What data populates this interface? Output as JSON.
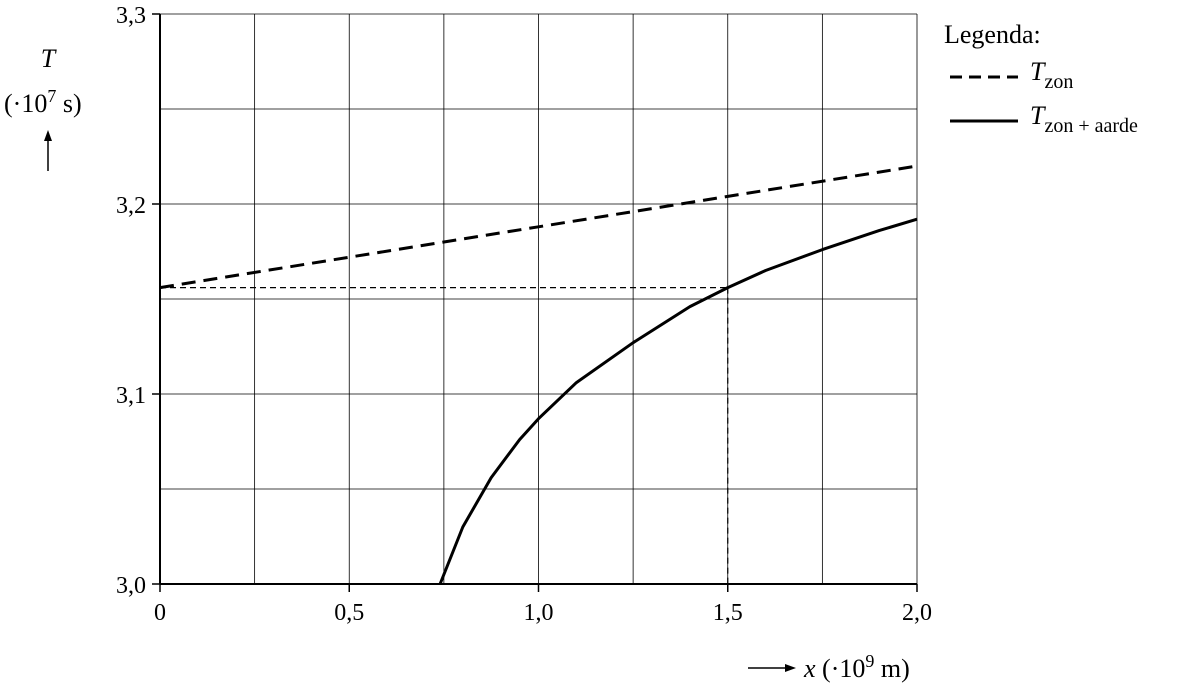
{
  "chart_data": {
    "type": "line",
    "x_axis": {
      "label_symbol": "x",
      "label_unit": "(·10",
      "label_exp": "9",
      "label_unit_end": "m)",
      "range": [
        0,
        2.0
      ],
      "ticks": [
        0,
        0.5,
        1.0,
        1.5,
        2.0
      ],
      "tick_labels": [
        "0",
        "0,5",
        "1,0",
        "1,5",
        "2,0"
      ],
      "grid_step": 0.25
    },
    "y_axis": {
      "label_symbol": "T",
      "label_unit": "(·10",
      "label_exp": "7",
      "label_unit_end": "s)",
      "range": [
        3.0,
        3.3
      ],
      "ticks": [
        3.0,
        3.1,
        3.2,
        3.3
      ],
      "tick_labels": [
        "3,0",
        "3,1",
        "3,2",
        "3,3"
      ],
      "grid_step": 0.05
    },
    "grid": true,
    "legend": {
      "title": "Legenda:",
      "placement": "right",
      "entries": [
        {
          "symbol": "T",
          "subscript": "zon",
          "style": "dashed"
        },
        {
          "symbol": "T",
          "subscript": "zon + aarde",
          "style": "solid"
        }
      ]
    },
    "series": [
      {
        "style": "dashed",
        "x": [
          0,
          0.5,
          1.0,
          1.5,
          2.0
        ],
        "y": [
          3.156,
          3.172,
          3.188,
          3.204,
          3.22
        ]
      },
      {
        "style": "solid",
        "x": [
          0.74,
          0.8,
          0.875,
          0.95,
          1.0,
          1.1,
          1.25,
          1.4,
          1.5,
          1.6,
          1.75,
          1.9,
          2.0
        ],
        "y": [
          3.0,
          3.03,
          3.056,
          3.076,
          3.087,
          3.106,
          3.127,
          3.146,
          3.156,
          3.165,
          3.176,
          3.186,
          3.192
        ]
      }
    ],
    "reference_lines": [
      {
        "from": [
          0,
          3.156
        ],
        "to": [
          1.5,
          3.156
        ]
      },
      {
        "from": [
          1.5,
          3.156
        ],
        "to": [
          1.5,
          3.0
        ]
      }
    ]
  }
}
